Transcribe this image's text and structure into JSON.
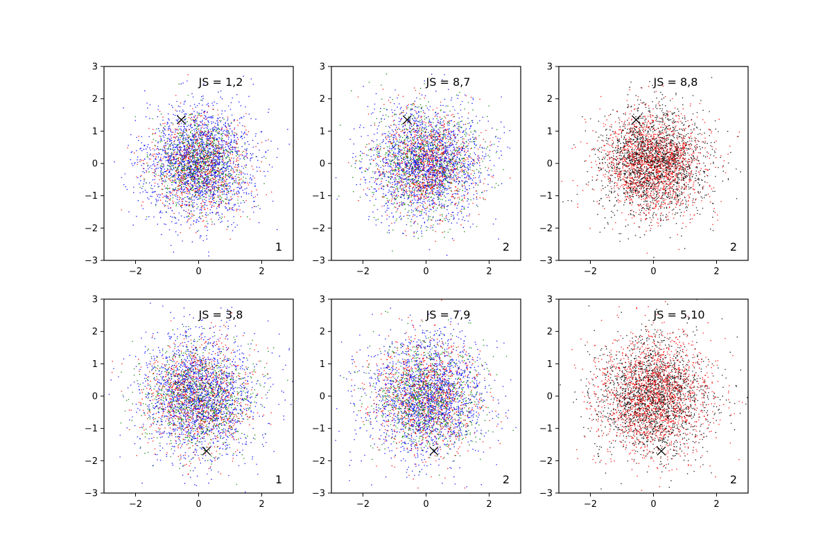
{
  "colors": {
    "red": "#ff0000",
    "green": "#008000",
    "blue": "#0000ff",
    "black": "#000000",
    "frame": "#000000"
  },
  "chart_data": [
    {
      "type": "scatter",
      "annotation": "JS = 1,2",
      "corner_label": "1",
      "marker": {
        "symbol": "x",
        "x": -0.55,
        "y": 1.35
      },
      "xlim": [
        -3,
        3
      ],
      "ylim": [
        -3,
        3
      ],
      "xticks": [
        -2,
        0,
        2
      ],
      "yticks": [
        -3,
        -2,
        -1,
        0,
        1,
        2,
        3
      ],
      "xtick_labels": [
        "−2",
        "0",
        "2"
      ],
      "ytick_labels": [
        "−3",
        "−2",
        "−1",
        "0",
        "1",
        "2",
        "3"
      ],
      "series": [
        {
          "color": "#0000ff",
          "points": 1800,
          "center": [
            0.0,
            0.0
          ],
          "std": [
            0.9,
            0.9
          ]
        },
        {
          "color": "#ff0000",
          "points": 900,
          "center": [
            0.0,
            -0.05
          ],
          "std": [
            0.75,
            0.75
          ]
        },
        {
          "color": "#008000",
          "points": 900,
          "center": [
            0.05,
            0.0
          ],
          "std": [
            0.7,
            0.7
          ]
        }
      ],
      "grid": false
    },
    {
      "type": "scatter",
      "annotation": "JS = 8,7",
      "corner_label": "2",
      "marker": {
        "symbol": "x",
        "x": -0.6,
        "y": 1.35
      },
      "xlim": [
        -3,
        3
      ],
      "ylim": [
        -3,
        3
      ],
      "xticks": [
        -2,
        0,
        2
      ],
      "yticks": [
        -3,
        -2,
        -1,
        0,
        1,
        2,
        3
      ],
      "xtick_labels": [
        "−2",
        "0",
        "2"
      ],
      "ytick_labels": [
        "−3",
        "−2",
        "−1",
        "0",
        "1",
        "2",
        "3"
      ],
      "series": [
        {
          "color": "#0000ff",
          "points": 1700,
          "center": [
            0.0,
            0.0
          ],
          "std": [
            0.9,
            0.9
          ]
        },
        {
          "color": "#ff0000",
          "points": 1000,
          "center": [
            0.0,
            0.0
          ],
          "std": [
            0.8,
            0.8
          ]
        },
        {
          "color": "#008000",
          "points": 1000,
          "center": [
            0.0,
            0.0
          ],
          "std": [
            0.85,
            0.85
          ]
        }
      ],
      "grid": false
    },
    {
      "type": "scatter",
      "annotation": "JS = 8,8",
      "corner_label": "2",
      "marker": {
        "symbol": "x",
        "x": -0.55,
        "y": 1.35
      },
      "xlim": [
        -3,
        3
      ],
      "ylim": [
        -3,
        3
      ],
      "xticks": [
        -2,
        0,
        2
      ],
      "yticks": [
        -3,
        -2,
        -1,
        0,
        1,
        2,
        3
      ],
      "xtick_labels": [
        "−2",
        "0",
        "2"
      ],
      "ytick_labels": [
        "−3",
        "−2",
        "−1",
        "0",
        "1",
        "2",
        "3"
      ],
      "series": [
        {
          "color": "#000000",
          "points": 1900,
          "center": [
            0.0,
            0.0
          ],
          "std": [
            0.85,
            0.85
          ]
        },
        {
          "color": "#ff0000",
          "points": 1700,
          "center": [
            0.0,
            0.0
          ],
          "std": [
            0.8,
            0.8
          ]
        }
      ],
      "grid": false
    },
    {
      "type": "scatter",
      "annotation": "JS = 3,8",
      "corner_label": "1",
      "marker": {
        "symbol": "x",
        "x": 0.25,
        "y": -1.7
      },
      "xlim": [
        -3,
        3
      ],
      "ylim": [
        -3,
        3
      ],
      "xticks": [
        -2,
        0,
        2
      ],
      "yticks": [
        -3,
        -2,
        -1,
        0,
        1,
        2,
        3
      ],
      "xtick_labels": [
        "−2",
        "0",
        "2"
      ],
      "ytick_labels": [
        "−3",
        "−2",
        "−1",
        "0",
        "1",
        "2",
        "3"
      ],
      "series": [
        {
          "color": "#0000ff",
          "points": 1700,
          "center": [
            0.0,
            0.0
          ],
          "std": [
            0.95,
            0.95
          ]
        },
        {
          "color": "#ff0000",
          "points": 1000,
          "center": [
            0.0,
            0.0
          ],
          "std": [
            0.85,
            0.85
          ]
        },
        {
          "color": "#008000",
          "points": 1000,
          "center": [
            0.0,
            0.0
          ],
          "std": [
            0.85,
            0.85
          ]
        }
      ],
      "grid": false
    },
    {
      "type": "scatter",
      "annotation": "JS = 7,9",
      "corner_label": "2",
      "marker": {
        "symbol": "x",
        "x": 0.25,
        "y": -1.7
      },
      "xlim": [
        -3,
        3
      ],
      "ylim": [
        -3,
        3
      ],
      "xticks": [
        -2,
        0,
        2
      ],
      "yticks": [
        -3,
        -2,
        -1,
        0,
        1,
        2,
        3
      ],
      "xtick_labels": [
        "−2",
        "0",
        "2"
      ],
      "ytick_labels": [
        "−3",
        "−2",
        "−1",
        "0",
        "1",
        "2",
        "3"
      ],
      "series": [
        {
          "color": "#0000ff",
          "points": 1700,
          "center": [
            0.0,
            0.0
          ],
          "std": [
            0.95,
            0.95
          ]
        },
        {
          "color": "#ff0000",
          "points": 1000,
          "center": [
            0.0,
            0.0
          ],
          "std": [
            0.85,
            0.85
          ]
        },
        {
          "color": "#008000",
          "points": 1000,
          "center": [
            0.0,
            0.0
          ],
          "std": [
            0.85,
            0.85
          ]
        }
      ],
      "grid": false
    },
    {
      "type": "scatter",
      "annotation": "JS = 5,10",
      "corner_label": "2",
      "marker": {
        "symbol": "x",
        "x": 0.25,
        "y": -1.7
      },
      "xlim": [
        -3,
        3
      ],
      "ylim": [
        -3,
        3
      ],
      "xticks": [
        -2,
        0,
        2
      ],
      "yticks": [
        -3,
        -2,
        -1,
        0,
        1,
        2,
        3
      ],
      "xtick_labels": [
        "−2",
        "0",
        "2"
      ],
      "ytick_labels": [
        "−3",
        "−2",
        "−1",
        "0",
        "1",
        "2",
        "3"
      ],
      "series": [
        {
          "color": "#000000",
          "points": 1800,
          "center": [
            0.0,
            0.0
          ],
          "std": [
            0.9,
            0.9
          ]
        },
        {
          "color": "#ff0000",
          "points": 1800,
          "center": [
            0.0,
            0.0
          ],
          "std": [
            0.9,
            0.9
          ]
        }
      ],
      "grid": false
    }
  ]
}
